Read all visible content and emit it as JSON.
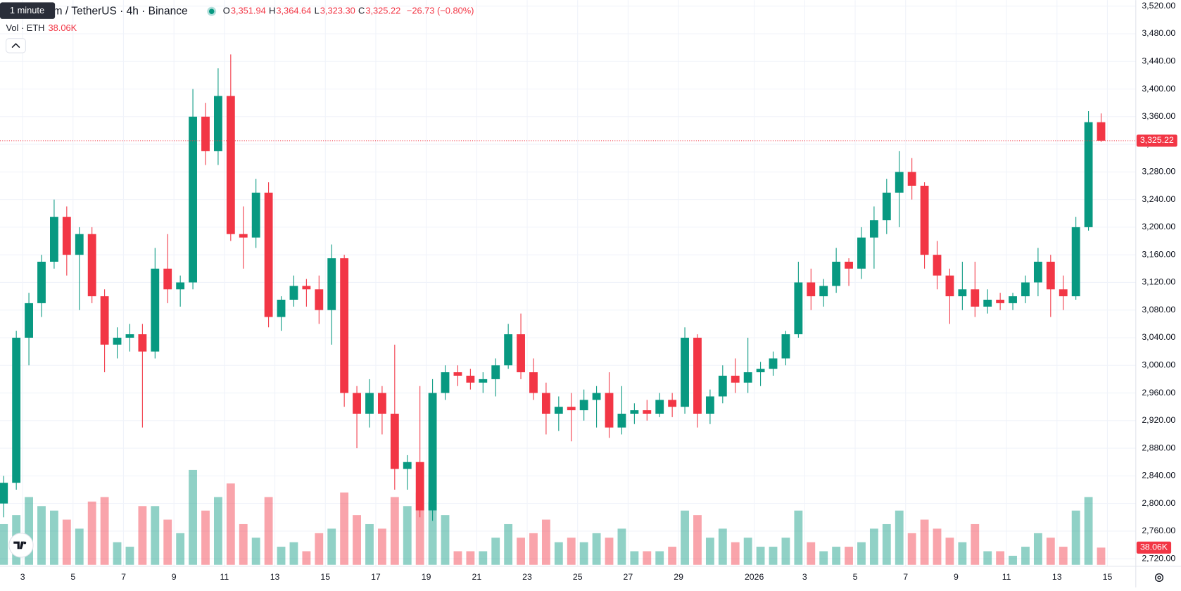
{
  "chart_data": {
    "type": "candlestick",
    "title": "Ethereum / TetherUS · 4h · Binance",
    "tooltip": "1 minute",
    "legend": [
      {
        "key": "O",
        "value": "3,351.94"
      },
      {
        "key": "H",
        "value": "3,364.64"
      },
      {
        "key": "L",
        "value": "3,323.30"
      },
      {
        "key": "C",
        "value": "3,325.22"
      }
    ],
    "change": "−26.73 (−0.80%)",
    "volume_title": "Vol · ETH",
    "volume_value": "38.06K",
    "up_color": "#089981",
    "down_color": "#f23645",
    "grid": true,
    "xlim": [
      "2025-12-02T02:30",
      "2026-01-16T03:00"
    ],
    "xticks": [
      {
        "value": "2025-12-03T00:00",
        "label": "3"
      },
      {
        "value": "2025-12-05T00:00",
        "label": "5"
      },
      {
        "value": "2025-12-07T00:00",
        "label": "7"
      },
      {
        "value": "2025-12-09T00:00",
        "label": "9"
      },
      {
        "value": "2025-12-11T00:00",
        "label": "11"
      },
      {
        "value": "2025-12-13T00:00",
        "label": "13"
      },
      {
        "value": "2025-12-15T00:00",
        "label": "15"
      },
      {
        "value": "2025-12-17T00:00",
        "label": "17"
      },
      {
        "value": "2025-12-19T00:00",
        "label": "19"
      },
      {
        "value": "2025-12-21T00:00",
        "label": "21"
      },
      {
        "value": "2025-12-23T00:00",
        "label": "23"
      },
      {
        "value": "2025-12-25T00:00",
        "label": "25"
      },
      {
        "value": "2025-12-27T00:00",
        "label": "27"
      },
      {
        "value": "2025-12-29T00:00",
        "label": "29"
      },
      {
        "value": "2026-01-01T00:00",
        "label": "2026"
      },
      {
        "value": "2026-01-03T00:00",
        "label": "3"
      },
      {
        "value": "2026-01-05T00:00",
        "label": "5"
      },
      {
        "value": "2026-01-07T00:00",
        "label": "7"
      },
      {
        "value": "2026-01-09T00:00",
        "label": "9"
      },
      {
        "value": "2026-01-11T00:00",
        "label": "11"
      },
      {
        "value": "2026-01-13T00:00",
        "label": "13"
      },
      {
        "value": "2026-01-15T00:00",
        "label": "15"
      }
    ],
    "ylim": [
      2720,
      3520
    ],
    "yticks": [
      {
        "value": 3520,
        "label": "3,520.00"
      },
      {
        "value": 3480,
        "label": "3,480.00"
      },
      {
        "value": 3440,
        "label": "3,440.00"
      },
      {
        "value": 3400,
        "label": "3,400.00"
      },
      {
        "value": 3360,
        "label": "3,360.00"
      },
      {
        "value": 3320,
        "label": "3,320.00"
      },
      {
        "value": 3280,
        "label": "3,280.00"
      },
      {
        "value": 3240,
        "label": "3,240.00"
      },
      {
        "value": 3200,
        "label": "3,200.00"
      },
      {
        "value": 3160,
        "label": "3,160.00"
      },
      {
        "value": 3120,
        "label": "3,120.00"
      },
      {
        "value": 3080,
        "label": "3,080.00"
      },
      {
        "value": 3040,
        "label": "3,040.00"
      },
      {
        "value": 3000,
        "label": "3,000.00"
      },
      {
        "value": 2960,
        "label": "2,960.00"
      },
      {
        "value": 2920,
        "label": "2,920.00"
      },
      {
        "value": 2880,
        "label": "2,880.00"
      },
      {
        "value": 2840,
        "label": "2,840.00"
      },
      {
        "value": 2800,
        "label": "2,800.00"
      },
      {
        "value": 2760,
        "label": "2,760.00"
      },
      {
        "value": 2720,
        "label": "2,720.00"
      }
    ],
    "volume_ylim": [
      0,
      300000
    ],
    "last_price": {
      "value": 3325.22,
      "label": "3,325.22"
    },
    "last_volume": {
      "value": 38060,
      "label": "38.06K"
    },
    "candles": {
      "x": [
        "2025-12-02T00:00",
        "2025-12-02T12:00",
        "2025-12-03T00:00",
        "2025-12-03T12:00",
        "2025-12-04T00:00",
        "2025-12-04T12:00",
        "2025-12-05T00:00",
        "2025-12-05T12:00",
        "2025-12-06T00:00",
        "2025-12-06T12:00",
        "2025-12-07T00:00",
        "2025-12-07T12:00",
        "2025-12-08T00:00",
        "2025-12-08T12:00",
        "2025-12-09T00:00",
        "2025-12-09T12:00",
        "2025-12-10T00:00",
        "2025-12-10T12:00",
        "2025-12-11T00:00",
        "2025-12-11T12:00",
        "2025-12-12T00:00",
        "2025-12-12T12:00",
        "2025-12-13T00:00",
        "2025-12-13T12:00",
        "2025-12-14T00:00",
        "2025-12-14T12:00",
        "2025-12-15T00:00",
        "2025-12-15T12:00",
        "2025-12-16T00:00",
        "2025-12-16T12:00",
        "2025-12-17T00:00",
        "2025-12-17T12:00",
        "2025-12-18T00:00",
        "2025-12-18T12:00",
        "2025-12-19T00:00",
        "2025-12-19T12:00",
        "2025-12-20T00:00",
        "2025-12-20T12:00",
        "2025-12-21T00:00",
        "2025-12-21T12:00",
        "2025-12-22T00:00",
        "2025-12-22T12:00",
        "2025-12-23T00:00",
        "2025-12-23T12:00",
        "2025-12-24T00:00",
        "2025-12-24T12:00",
        "2025-12-25T00:00",
        "2025-12-25T12:00",
        "2025-12-26T00:00",
        "2025-12-26T12:00",
        "2025-12-27T00:00",
        "2025-12-27T12:00",
        "2025-12-28T00:00",
        "2025-12-28T12:00",
        "2025-12-29T00:00",
        "2025-12-29T12:00",
        "2025-12-30T00:00",
        "2025-12-30T12:00",
        "2025-12-31T00:00",
        "2025-12-31T12:00",
        "2026-01-01T00:00",
        "2026-01-01T12:00",
        "2026-01-02T00:00",
        "2026-01-02T12:00",
        "2026-01-03T00:00",
        "2026-01-03T12:00",
        "2026-01-04T00:00",
        "2026-01-04T12:00",
        "2026-01-05T00:00",
        "2026-01-05T12:00",
        "2026-01-06T00:00",
        "2026-01-06T12:00",
        "2026-01-07T00:00",
        "2026-01-07T12:00",
        "2026-01-08T00:00",
        "2026-01-08T12:00",
        "2026-01-09T00:00",
        "2026-01-09T12:00",
        "2026-01-10T00:00",
        "2026-01-10T12:00",
        "2026-01-11T00:00",
        "2026-01-11T12:00",
        "2026-01-12T00:00",
        "2026-01-12T12:00",
        "2026-01-13T00:00",
        "2026-01-13T12:00",
        "2026-01-14T00:00",
        "2026-01-14T12:00"
      ],
      "open": [
        2800,
        2830,
        3040,
        3090,
        3150,
        3215,
        3160,
        3190,
        3100,
        3030,
        3040,
        3045,
        3020,
        3140,
        3110,
        3120,
        3360,
        3310,
        3390,
        3190,
        3185,
        3250,
        3070,
        3095,
        3115,
        3110,
        3080,
        3155,
        2960,
        2930,
        2960,
        2930,
        2850,
        2860,
        2790,
        2960,
        2990,
        2985,
        2975,
        2980,
        3000,
        3045,
        2990,
        2960,
        2930,
        2940,
        2935,
        2950,
        2960,
        2910,
        2930,
        2935,
        2930,
        2950,
        2940,
        3040,
        2930,
        2955,
        2985,
        2975,
        2990,
        2995,
        3010,
        3045,
        3120,
        3100,
        3115,
        3150,
        3140,
        3185,
        3210,
        3250,
        3280,
        3260,
        3160,
        3130,
        3100,
        3110,
        3085,
        3095,
        3090,
        3100,
        3120,
        3150,
        3110,
        3100,
        3200,
        3351.94
      ],
      "high": [
        2840,
        3050,
        3105,
        3160,
        3240,
        3230,
        3200,
        3200,
        3110,
        3055,
        3060,
        3060,
        3170,
        3190,
        3130,
        3400,
        3380,
        3430,
        3450,
        3230,
        3270,
        3265,
        3100,
        3130,
        3125,
        3130,
        3175,
        3160,
        2970,
        2980,
        2970,
        3030,
        2870,
        2970,
        2980,
        3000,
        3000,
        2995,
        2990,
        3010,
        3060,
        3075,
        3010,
        2975,
        2955,
        2960,
        2965,
        2970,
        2990,
        2970,
        2945,
        2950,
        2960,
        2960,
        3055,
        3045,
        2965,
        3000,
        3010,
        3040,
        3005,
        3020,
        3050,
        3150,
        3140,
        3125,
        3170,
        3155,
        3200,
        3230,
        3270,
        3310,
        3300,
        3265,
        3180,
        3140,
        3150,
        3150,
        3110,
        3105,
        3105,
        3130,
        3170,
        3160,
        3130,
        3215,
        3368,
        3364.64
      ],
      "low": [
        2780,
        2820,
        3000,
        3070,
        3140,
        3130,
        3080,
        3090,
        2990,
        3010,
        3020,
        2910,
        3010,
        3090,
        3085,
        3110,
        3290,
        3290,
        3180,
        3140,
        3170,
        3055,
        3050,
        3085,
        3085,
        3060,
        3030,
        2940,
        2880,
        2910,
        2900,
        2820,
        2820,
        2780,
        2775,
        2950,
        2970,
        2965,
        2960,
        2955,
        2995,
        2980,
        2950,
        2900,
        2905,
        2890,
        2920,
        2910,
        2895,
        2900,
        2915,
        2920,
        2925,
        2925,
        2930,
        2910,
        2915,
        2945,
        2960,
        2960,
        2970,
        2985,
        3000,
        3040,
        3080,
        3085,
        3105,
        3115,
        3125,
        3140,
        3190,
        3200,
        3240,
        3140,
        3110,
        3060,
        3080,
        3070,
        3075,
        3080,
        3080,
        3090,
        3100,
        3070,
        3080,
        3095,
        3195,
        3323.3
      ],
      "close": [
        2830,
        3040,
        3090,
        3150,
        3215,
        3160,
        3190,
        3100,
        3030,
        3040,
        3045,
        3020,
        3140,
        3110,
        3120,
        3360,
        3310,
        3390,
        3190,
        3185,
        3250,
        3070,
        3095,
        3115,
        3110,
        3080,
        3155,
        2960,
        2930,
        2960,
        2930,
        2850,
        2860,
        2790,
        2960,
        2990,
        2985,
        2975,
        2980,
        3000,
        3045,
        2990,
        2960,
        2930,
        2940,
        2935,
        2950,
        2960,
        2910,
        2930,
        2935,
        2930,
        2950,
        2940,
        3040,
        2930,
        2955,
        2985,
        2975,
        2990,
        2995,
        3010,
        3045,
        3120,
        3100,
        3115,
        3150,
        3140,
        3185,
        3210,
        3250,
        3280,
        3260,
        3160,
        3130,
        3100,
        3110,
        3085,
        3095,
        3090,
        3100,
        3120,
        3150,
        3110,
        3100,
        3200,
        3352,
        3325.22
      ],
      "volume": [
        90000,
        110000,
        150000,
        130000,
        120000,
        100000,
        80000,
        140000,
        150000,
        50000,
        40000,
        130000,
        130000,
        100000,
        70000,
        210000,
        120000,
        150000,
        180000,
        90000,
        60000,
        150000,
        40000,
        50000,
        30000,
        70000,
        80000,
        160000,
        110000,
        90000,
        80000,
        150000,
        130000,
        160000,
        140000,
        110000,
        30000,
        30000,
        30000,
        60000,
        90000,
        60000,
        70000,
        100000,
        50000,
        60000,
        50000,
        70000,
        60000,
        80000,
        30000,
        30000,
        30000,
        40000,
        120000,
        110000,
        60000,
        80000,
        50000,
        60000,
        40000,
        40000,
        60000,
        120000,
        50000,
        30000,
        40000,
        40000,
        50000,
        80000,
        90000,
        120000,
        70000,
        100000,
        80000,
        60000,
        50000,
        90000,
        30000,
        30000,
        20000,
        40000,
        70000,
        60000,
        40000,
        120000,
        150000,
        38060
      ]
    }
  }
}
